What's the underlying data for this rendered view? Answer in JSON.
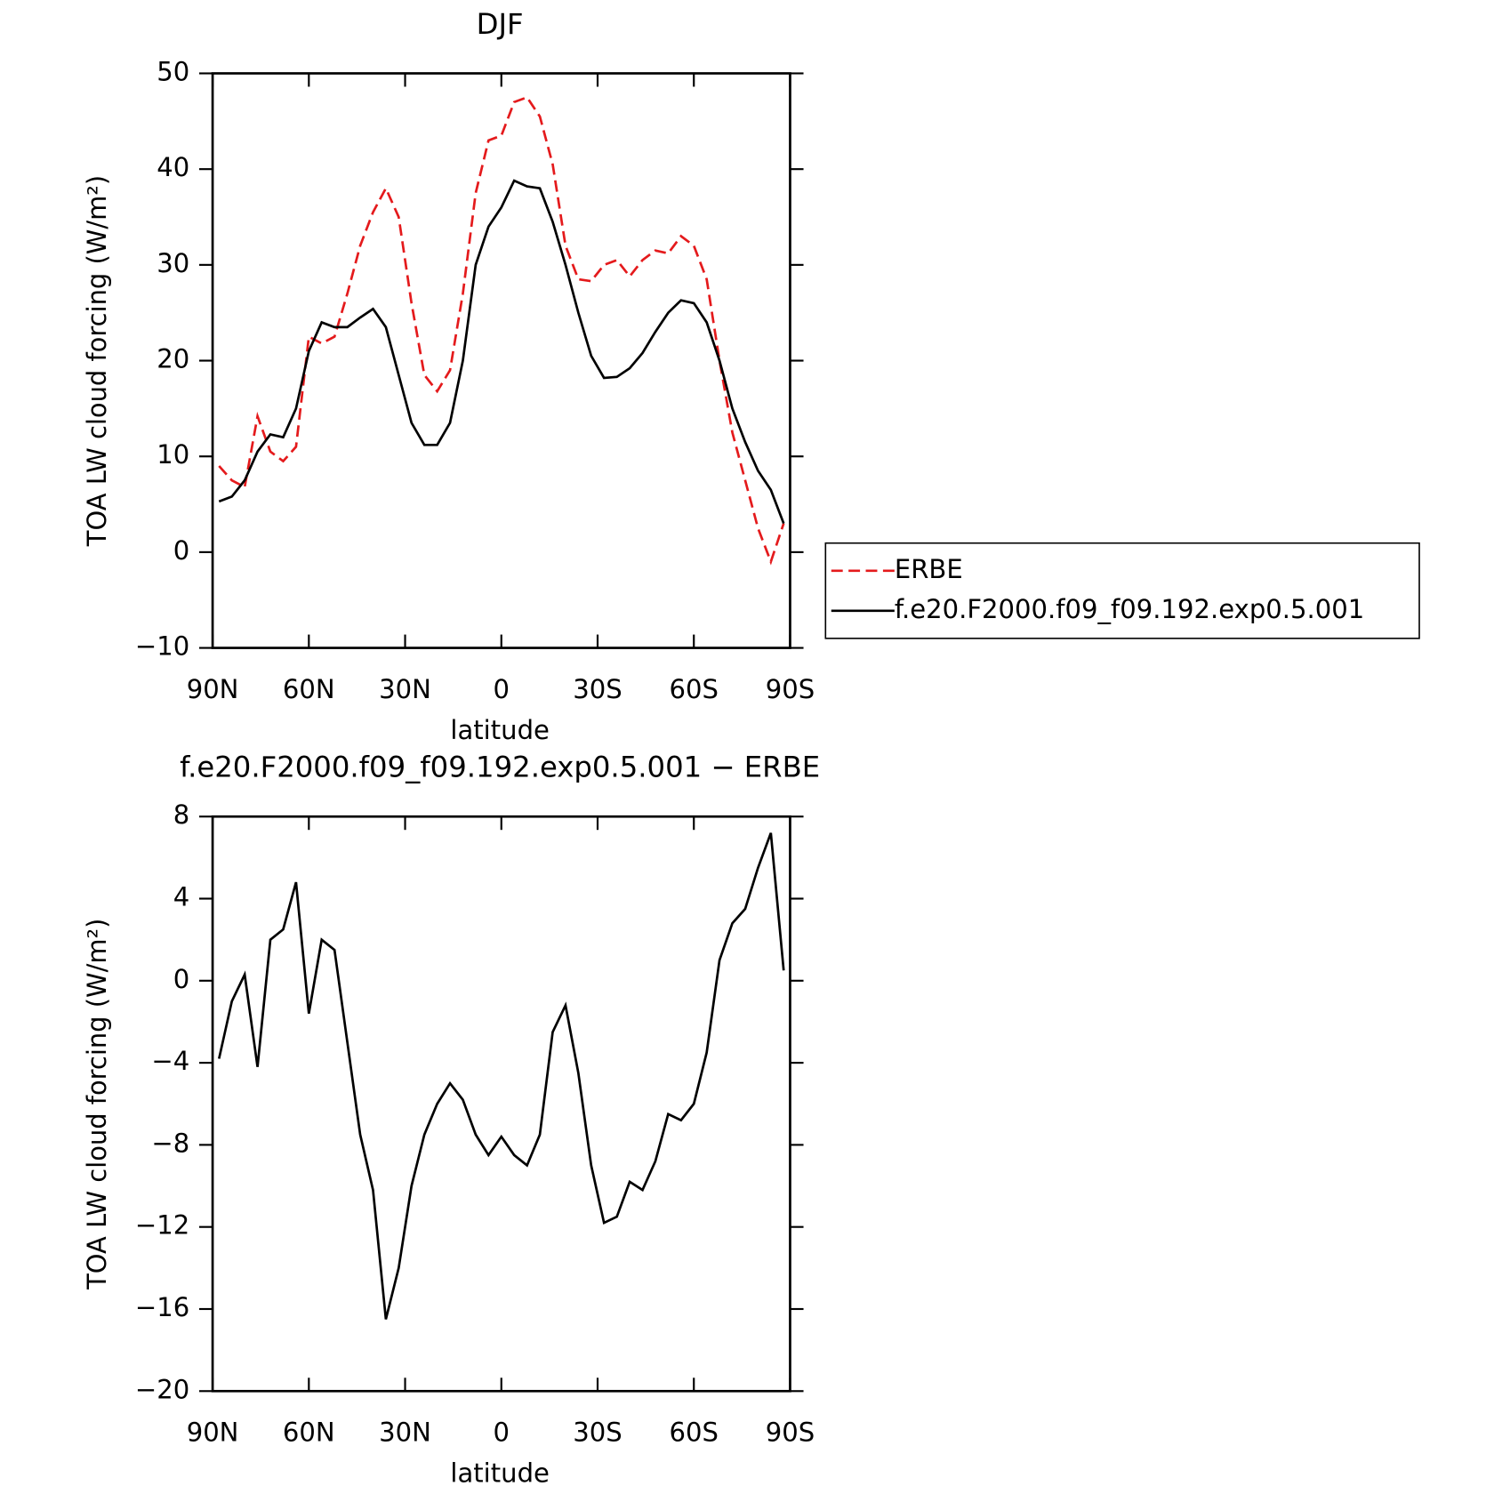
{
  "chart_data": [
    {
      "type": "line",
      "title": "DJF",
      "xlabel": "latitude",
      "ylabel": "TOA LW cloud forcing (W/m²)",
      "x": [
        88,
        84,
        80,
        76,
        72,
        68,
        64,
        60,
        56,
        52,
        48,
        44,
        40,
        36,
        32,
        28,
        24,
        20,
        16,
        12,
        8,
        4,
        0,
        -4,
        -8,
        -12,
        -16,
        -20,
        -24,
        -28,
        -32,
        -36,
        -40,
        -44,
        -48,
        -52,
        -56,
        -60,
        -64,
        -68,
        -72,
        -76,
        -80,
        -84,
        -88
      ],
      "series": [
        {
          "name": "ERBE",
          "color": "#e41a1c",
          "linestyle": "dashed",
          "values": [
            9,
            7.5,
            6.8,
            14.2,
            10.5,
            9.5,
            11,
            22.5,
            21.8,
            22.5,
            27,
            32,
            35.5,
            38,
            35,
            26,
            18.5,
            16.8,
            19,
            27,
            37.5,
            43,
            43.5,
            47,
            47.5,
            45.5,
            40.5,
            32,
            28.5,
            28.3,
            30,
            30.5,
            28.8,
            30.5,
            31.5,
            31.2,
            33,
            32,
            28.5,
            20,
            12.5,
            7.5,
            2.5,
            -1,
            3
          ]
        },
        {
          "name": "f.e20.F2000.f09_f09.192.exp0.5.001",
          "color": "#000000",
          "linestyle": "solid",
          "values": [
            5.3,
            5.8,
            7.5,
            10.5,
            12.3,
            12,
            15,
            21,
            24,
            23.5,
            23.5,
            24.5,
            25.4,
            23.5,
            18.5,
            13.5,
            11.2,
            11.2,
            13.5,
            20,
            30,
            34,
            36,
            38.8,
            38.2,
            38,
            34.5,
            30,
            25,
            20.5,
            18.2,
            18.3,
            19.2,
            20.8,
            23,
            25,
            26.3,
            26,
            24,
            20,
            15,
            11.5,
            8.5,
            6.5,
            3
          ]
        }
      ],
      "xlim": [
        90,
        -90
      ],
      "xticks": [
        {
          "value": 90,
          "label": "90N"
        },
        {
          "value": 60,
          "label": "60N"
        },
        {
          "value": 30,
          "label": "30N"
        },
        0,
        {
          "value": -30,
          "label": "30S"
        },
        {
          "value": -60,
          "label": "60S"
        },
        {
          "value": -90,
          "label": "90S"
        }
      ],
      "ylim": [
        -10,
        50
      ],
      "yticks": [
        {
          "value": -10,
          "label": "−10"
        },
        0,
        10,
        20,
        30,
        40,
        50
      ],
      "legend": "right"
    },
    {
      "type": "line",
      "title": "f.e20.F2000.f09_f09.192.exp0.5.001 − ERBE",
      "xlabel": "latitude",
      "ylabel": "TOA LW cloud forcing (W/m²)",
      "x": [
        88,
        84,
        80,
        76,
        72,
        68,
        64,
        60,
        56,
        52,
        48,
        44,
        40,
        36,
        32,
        28,
        24,
        20,
        16,
        12,
        8,
        4,
        0,
        -4,
        -8,
        -12,
        -16,
        -20,
        -24,
        -28,
        -32,
        -36,
        -40,
        -44,
        -48,
        -52,
        -56,
        -60,
        -64,
        -68,
        -72,
        -76,
        -80,
        -84,
        -88
      ],
      "series": [
        {
          "color": "#000000",
          "linestyle": "solid",
          "values": [
            -3.8,
            -1,
            0.3,
            -4.2,
            2,
            2.5,
            4.8,
            -1.6,
            2,
            1.5,
            -3,
            -7.5,
            -10.2,
            -16.5,
            -14,
            -10,
            -7.5,
            -6,
            -5,
            -5.8,
            -7.5,
            -8.5,
            -7.6,
            -8.5,
            -9,
            -7.5,
            -2.5,
            -1.2,
            -4.5,
            -9,
            -11.8,
            -11.5,
            -9.8,
            -10.2,
            -8.8,
            -6.5,
            -6.8,
            -6,
            -3.5,
            1,
            2.8,
            3.5,
            5.5,
            7.2,
            0.5
          ]
        }
      ],
      "xlim": [
        90,
        -90
      ],
      "xticks": [
        {
          "value": 90,
          "label": "90N"
        },
        {
          "value": 60,
          "label": "60N"
        },
        {
          "value": 30,
          "label": "30N"
        },
        0,
        {
          "value": -30,
          "label": "30S"
        },
        {
          "value": -60,
          "label": "60S"
        },
        {
          "value": -90,
          "label": "90S"
        }
      ],
      "ylim": [
        -20,
        8
      ],
      "yticks": [
        {
          "value": -20,
          "label": "−20"
        },
        {
          "value": -16,
          "label": "−16"
        },
        {
          "value": -12,
          "label": "−12"
        },
        {
          "value": -8,
          "label": "−8"
        },
        {
          "value": -4,
          "label": "−4"
        },
        0,
        4,
        8
      ]
    }
  ]
}
